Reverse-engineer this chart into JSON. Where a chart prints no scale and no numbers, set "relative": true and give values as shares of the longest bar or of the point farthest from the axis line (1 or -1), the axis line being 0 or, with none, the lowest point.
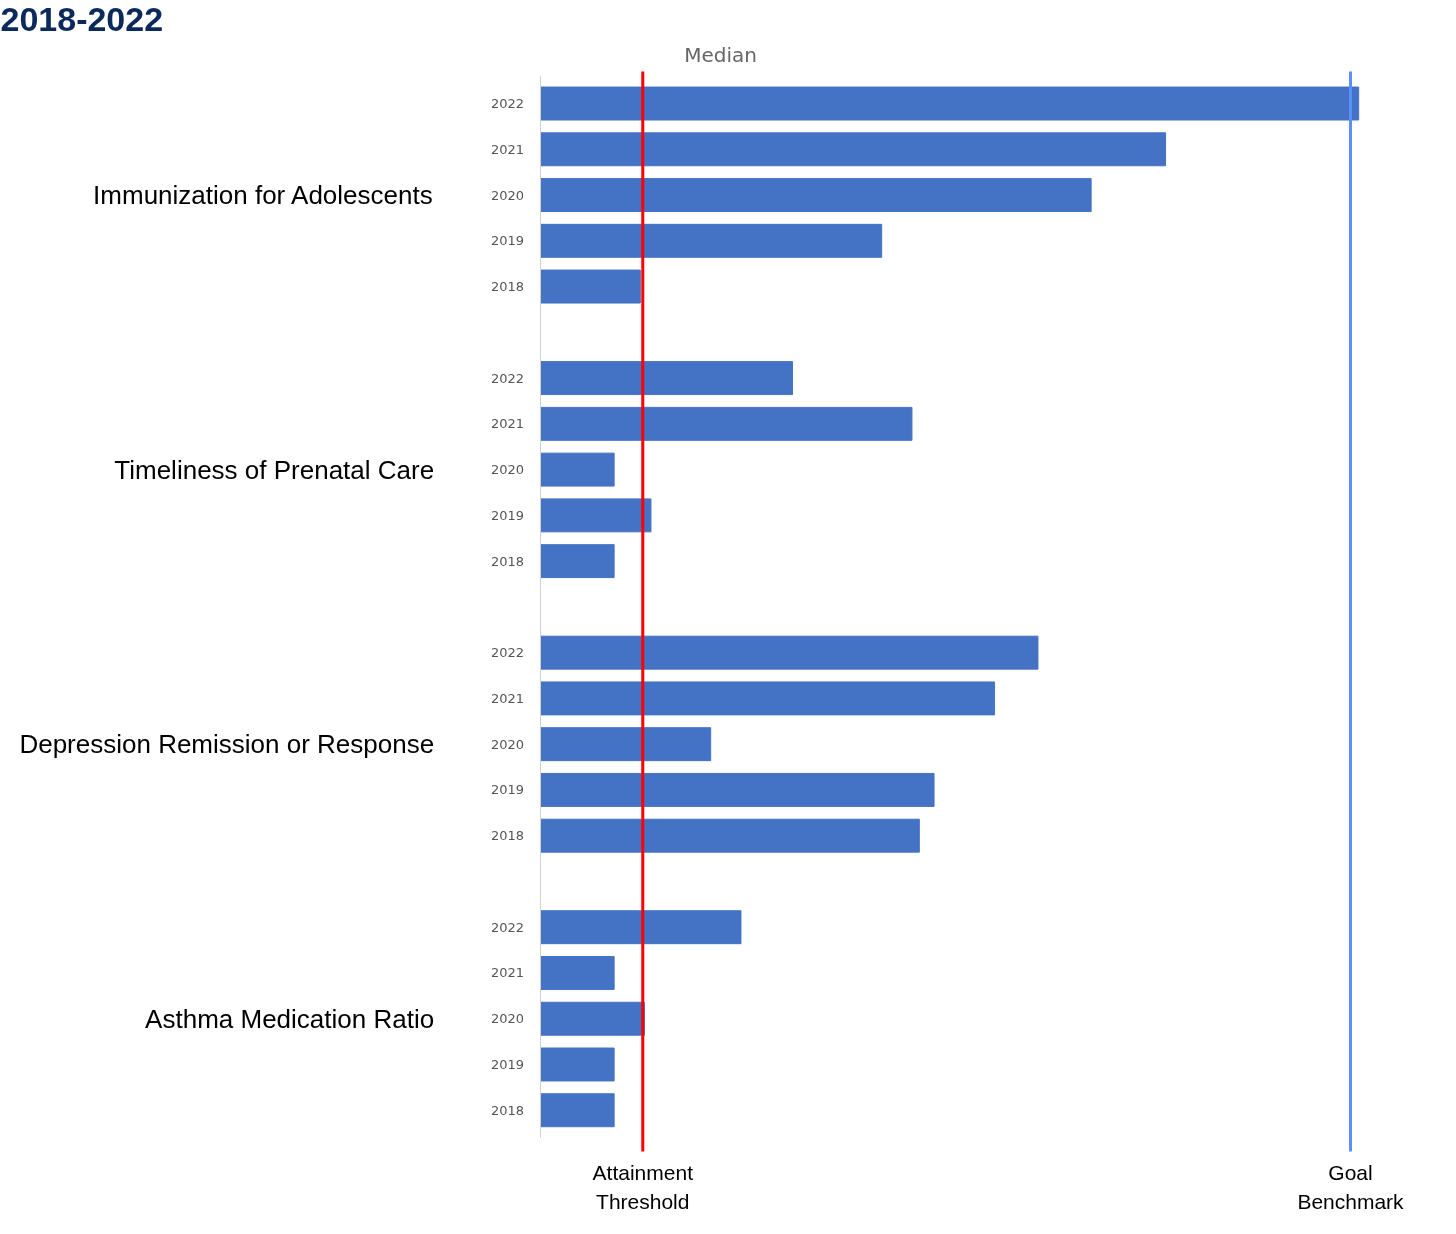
{
  "chart_data": {
    "type": "bar",
    "orientation": "horizontal",
    "relative": true,
    "title": "2018-2022",
    "subtitle": "Median",
    "categories": [
      "2022",
      "2021",
      "2020",
      "2019",
      "2018",
      null,
      "2022",
      "2021",
      "2020",
      "2019",
      "2018",
      null,
      "2022",
      "2021",
      "2020",
      "2019",
      "2018",
      null,
      "2022",
      "2021",
      "2020",
      "2019",
      "2018"
    ],
    "values": [
      1.0,
      0.764,
      0.673,
      0.417,
      0.122,
      null,
      0.308,
      0.454,
      0.09,
      0.135,
      0.09,
      null,
      0.608,
      0.555,
      0.208,
      0.481,
      0.463,
      null,
      0.245,
      0.09,
      0.127,
      0.09,
      0.09
    ],
    "color": "#4472c4",
    "annotations": [
      "Immunization for Adolescents",
      "Timeliness of Prenatal Care",
      "Depression Remission or Response",
      "Asthma Medication Ratio"
    ],
    "ref_lines": [
      {
        "axis": "x",
        "value": 0.125,
        "label": "Attainment\nThreshold",
        "color": "#ff0000"
      },
      {
        "axis": "x",
        "value": 0.99,
        "label": "Goal\nBenchmark",
        "color": "#5b8ff9"
      }
    ],
    "grid": false
  }
}
